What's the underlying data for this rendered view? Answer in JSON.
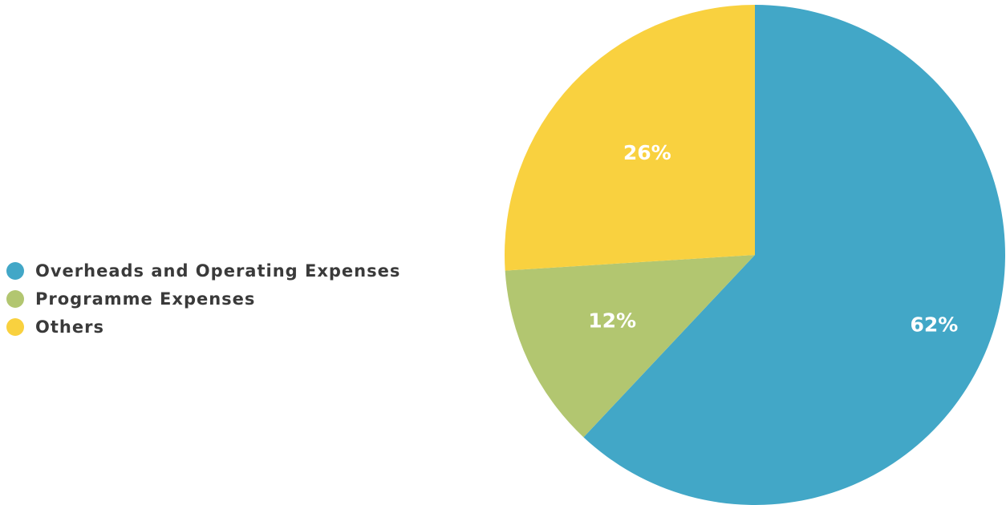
{
  "chart_data": {
    "type": "pie",
    "categories": [
      "Overheads and Operating Expenses",
      "Programme Expenses",
      "Others"
    ],
    "values": [
      62,
      12,
      26
    ],
    "labels": [
      "62%",
      "12%",
      "26%"
    ],
    "colors": [
      "#42a7c7",
      "#b2c670",
      "#f9d13f"
    ],
    "legend_placement": "left",
    "start_angle": "12 o'clock, clockwise"
  }
}
